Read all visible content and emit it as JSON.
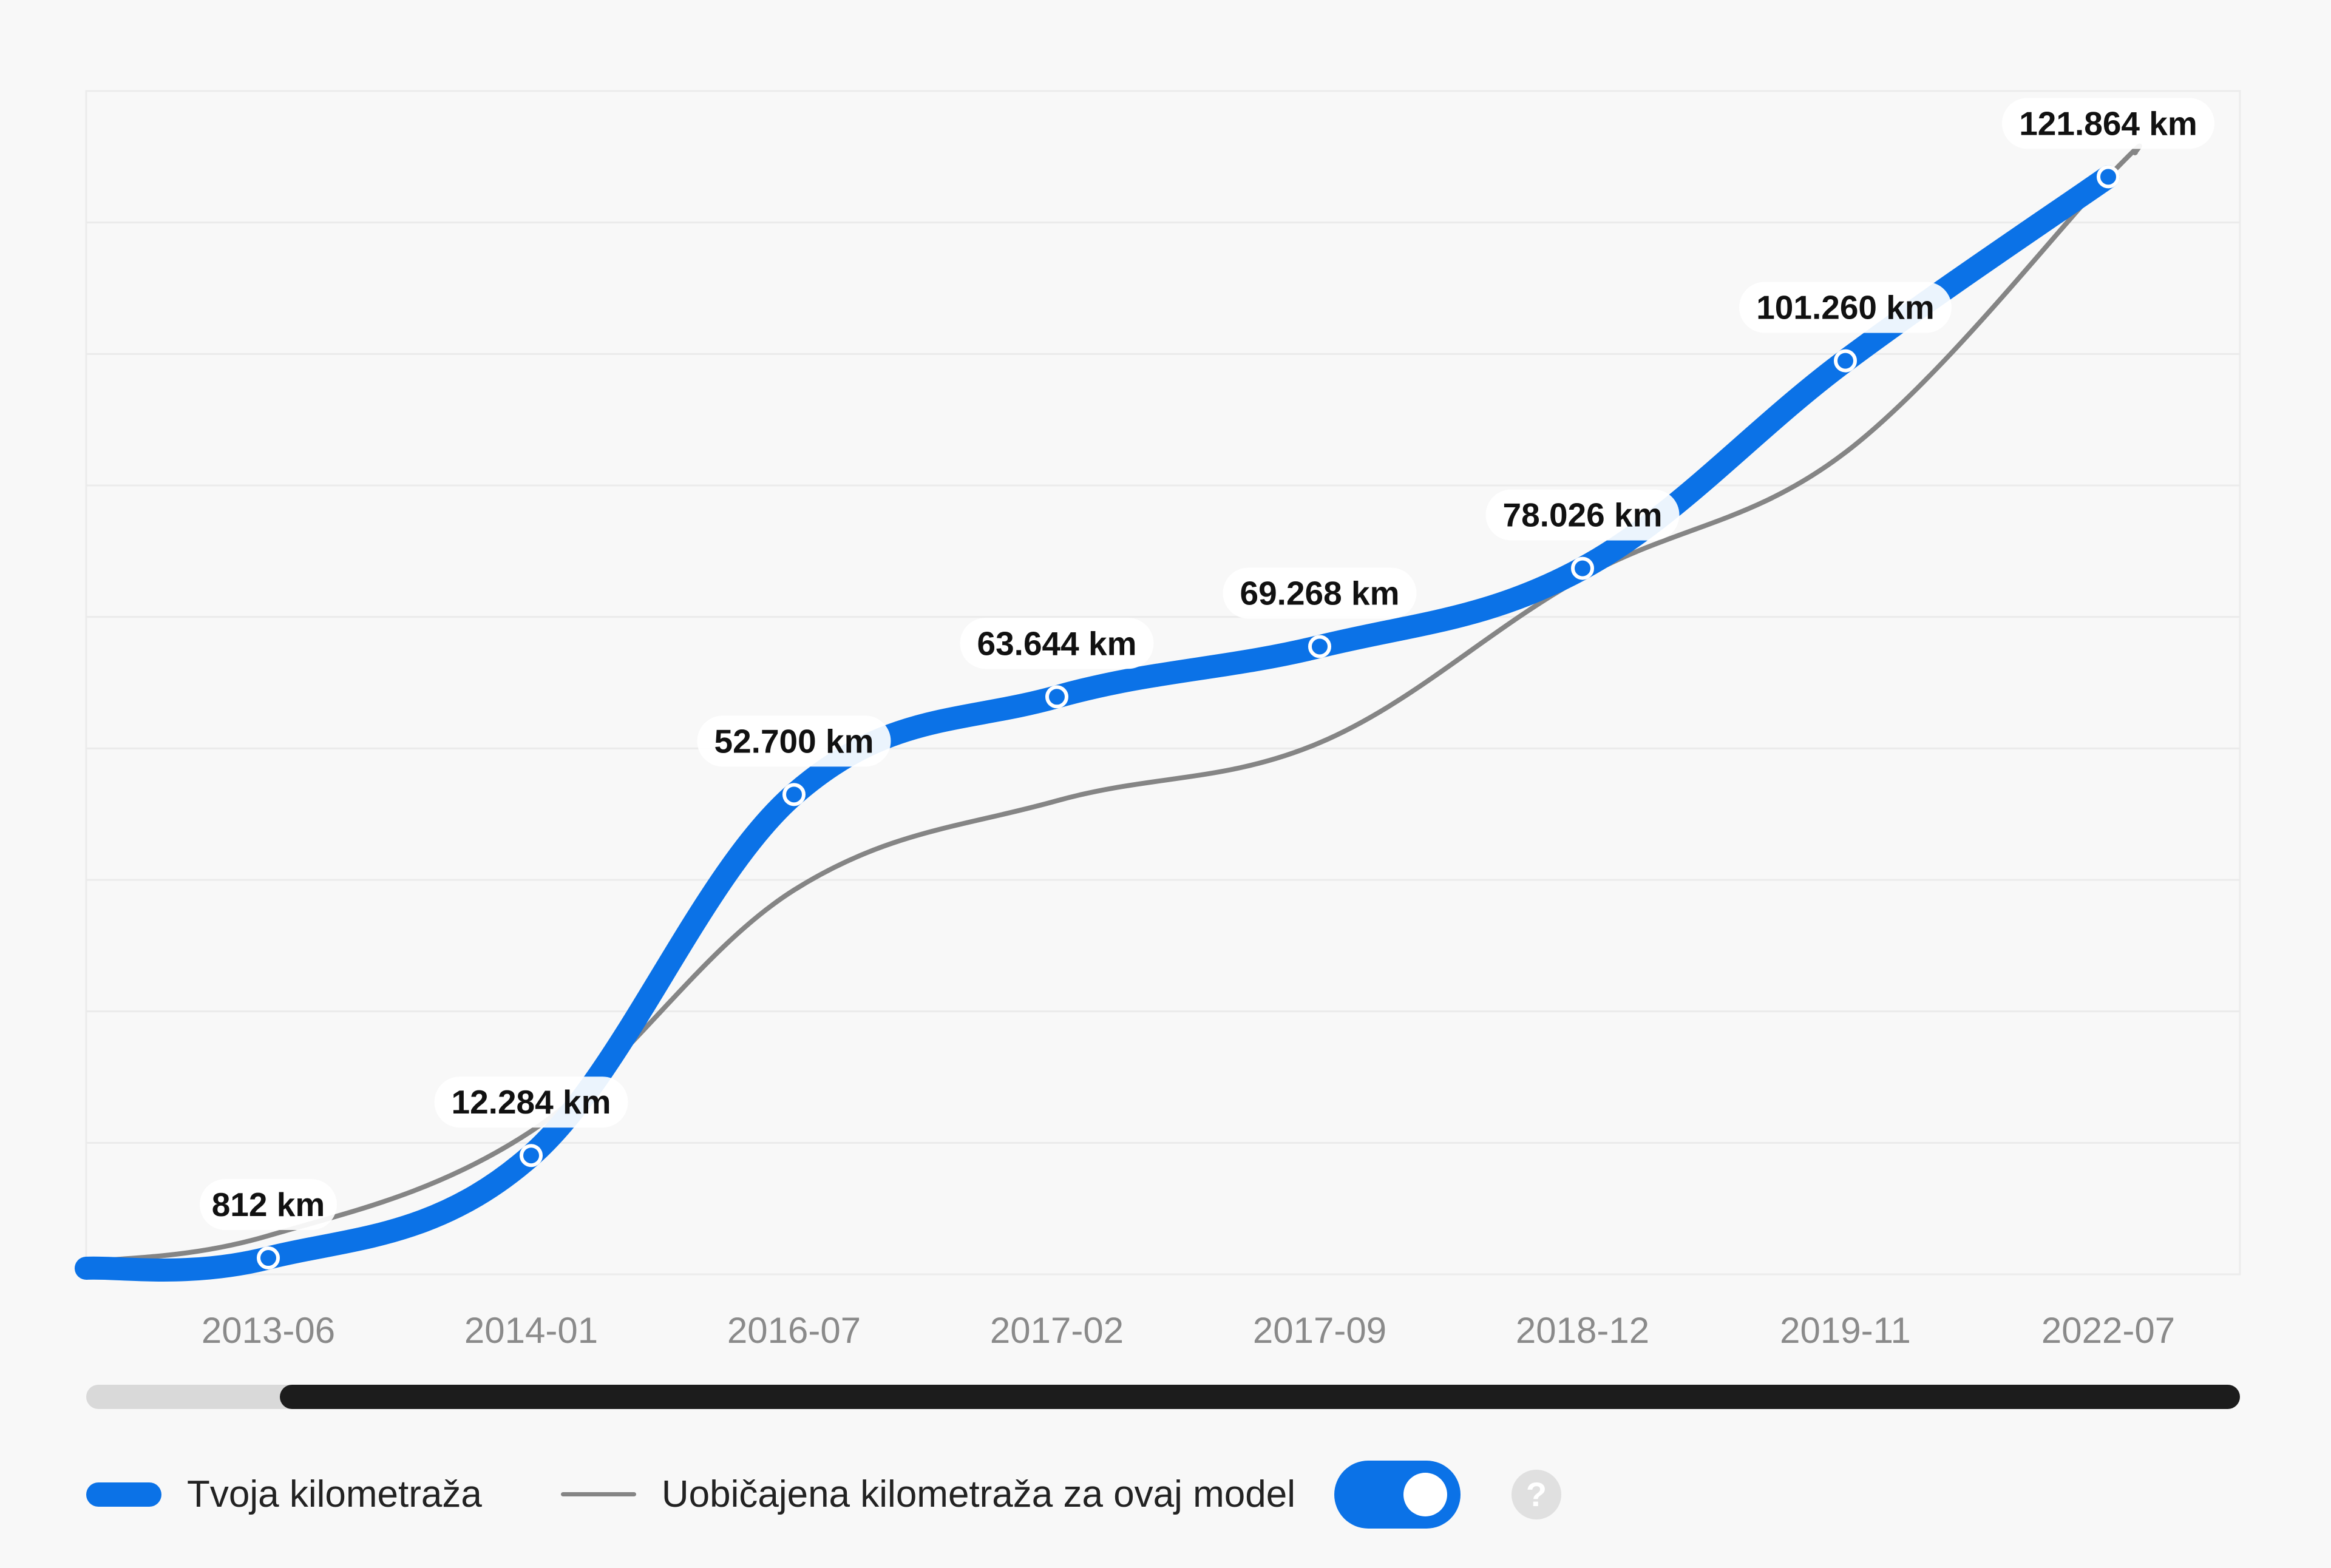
{
  "chart_data": {
    "type": "line",
    "categories": [
      "2013-06",
      "2014-01",
      "2016-07",
      "2017-02",
      "2017-09",
      "2018-12",
      "2019-11",
      "2022-07"
    ],
    "series": [
      {
        "name": "Tvoja kilometraža",
        "values": [
          812,
          12284,
          52700,
          63644,
          69268,
          78026,
          101260,
          121864
        ],
        "data_labels": [
          "812 km",
          "12.284 km",
          "52.700 km",
          "63.644 km",
          "69.268 km",
          "78.026 km",
          "101.260 km",
          "121.864 km"
        ]
      },
      {
        "name": "Uobičajena kilometraža za ovaj model",
        "values": [
          3300,
          15000,
          42000,
          52000,
          58500,
          77000,
          91000,
          121864
        ]
      }
    ],
    "ylim": [
      0,
      135000
    ],
    "grid": true,
    "legend_position": "bottom-left",
    "colors": {
      "primary": "#0b72e7",
      "typical": "#858585"
    }
  },
  "scrollbar": {
    "visible_fraction_start": 0.09,
    "visible_fraction_end": 1.0
  },
  "legend": {
    "own_label": "Tvoja kilometraža",
    "typical_label": "Uobičajena kilometraža za ovaj model",
    "toggle_on": true,
    "help_icon": "question-mark-icon",
    "help_glyph": "?"
  }
}
